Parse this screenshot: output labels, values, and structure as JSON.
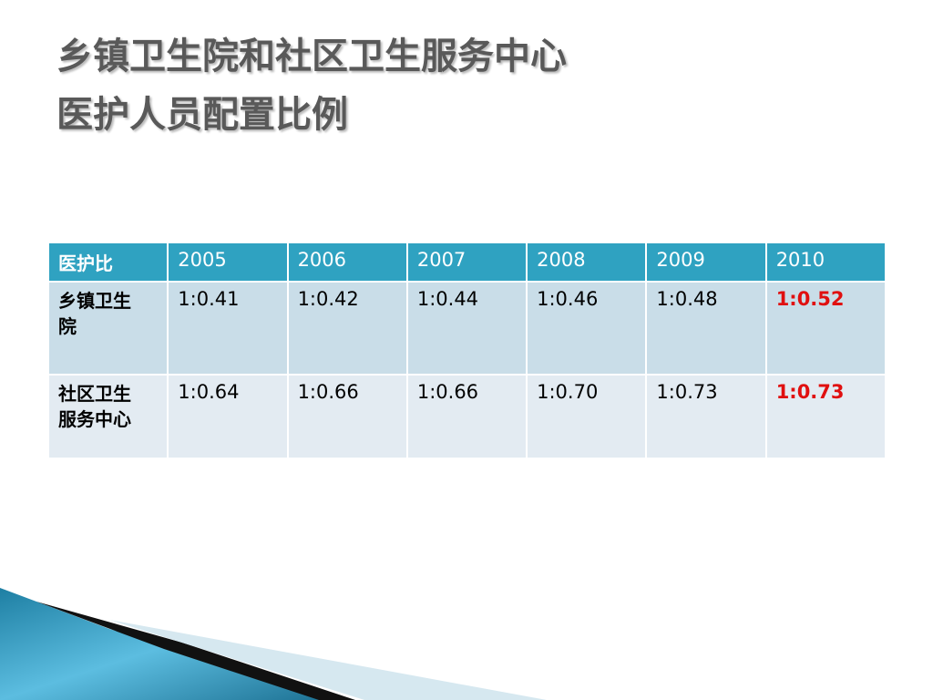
{
  "title": {
    "lines": [
      "乡镇卫生院和社区卫生服务中心",
      "医护人员配置比例"
    ]
  },
  "table": {
    "header": [
      "医护比",
      "2005",
      "2006",
      "2007",
      "2008",
      "2009",
      "2010"
    ],
    "rows": [
      [
        "乡镇卫生院",
        "1:0.41",
        "1:0.42",
        "1:0.44",
        "1:0.46",
        "1:0.48",
        "1:0.52"
      ],
      [
        "社区卫生服务中心",
        "1:0.64",
        "1:0.66",
        "1:0.66",
        "1:0.70",
        "1:0.73",
        "1:0.73"
      ]
    ]
  }
}
